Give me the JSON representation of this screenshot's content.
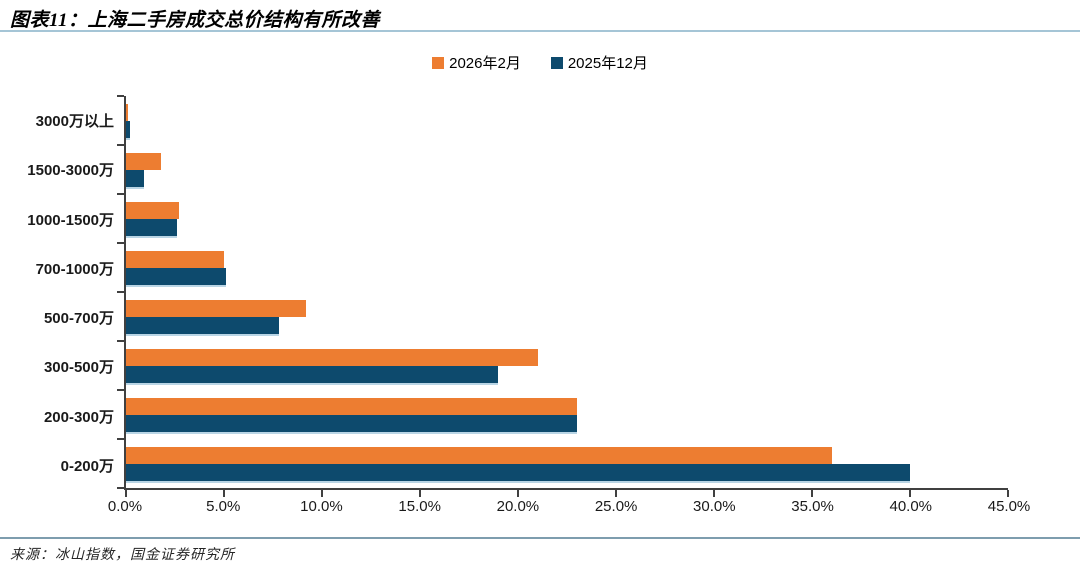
{
  "header": {
    "title": "图表11：上海二手房成交总价结构有所改善"
  },
  "footer": {
    "source": "来源：冰山指数，国金证券研究所"
  },
  "chart_data": {
    "type": "bar",
    "orientation": "horizontal",
    "title": "图表11：上海二手房成交总价结构有所改善",
    "categories": [
      "3000万以上",
      "1500-3000万",
      "1000-1500万",
      "700-1000万",
      "500-700万",
      "300-500万",
      "200-300万",
      "0-200万"
    ],
    "series": [
      {
        "name": "2026年2月",
        "color": "#ed7d31",
        "values": [
          0.1,
          1.8,
          2.7,
          5.0,
          9.2,
          21.0,
          23.0,
          36.0
        ]
      },
      {
        "name": "2025年12月",
        "color": "#0d4a6d",
        "values": [
          0.2,
          0.9,
          2.6,
          5.1,
          7.8,
          19.0,
          23.0,
          40.0
        ]
      }
    ],
    "xlim": [
      0,
      45
    ],
    "x_tick_step": 5,
    "x_tick_labels": [
      "0.0%",
      "5.0%",
      "10.0%",
      "15.0%",
      "20.0%",
      "25.0%",
      "30.0%",
      "35.0%",
      "40.0%",
      "45.0%"
    ],
    "legend_position": "top-center",
    "grid": "off",
    "axis_color": "#404040"
  }
}
